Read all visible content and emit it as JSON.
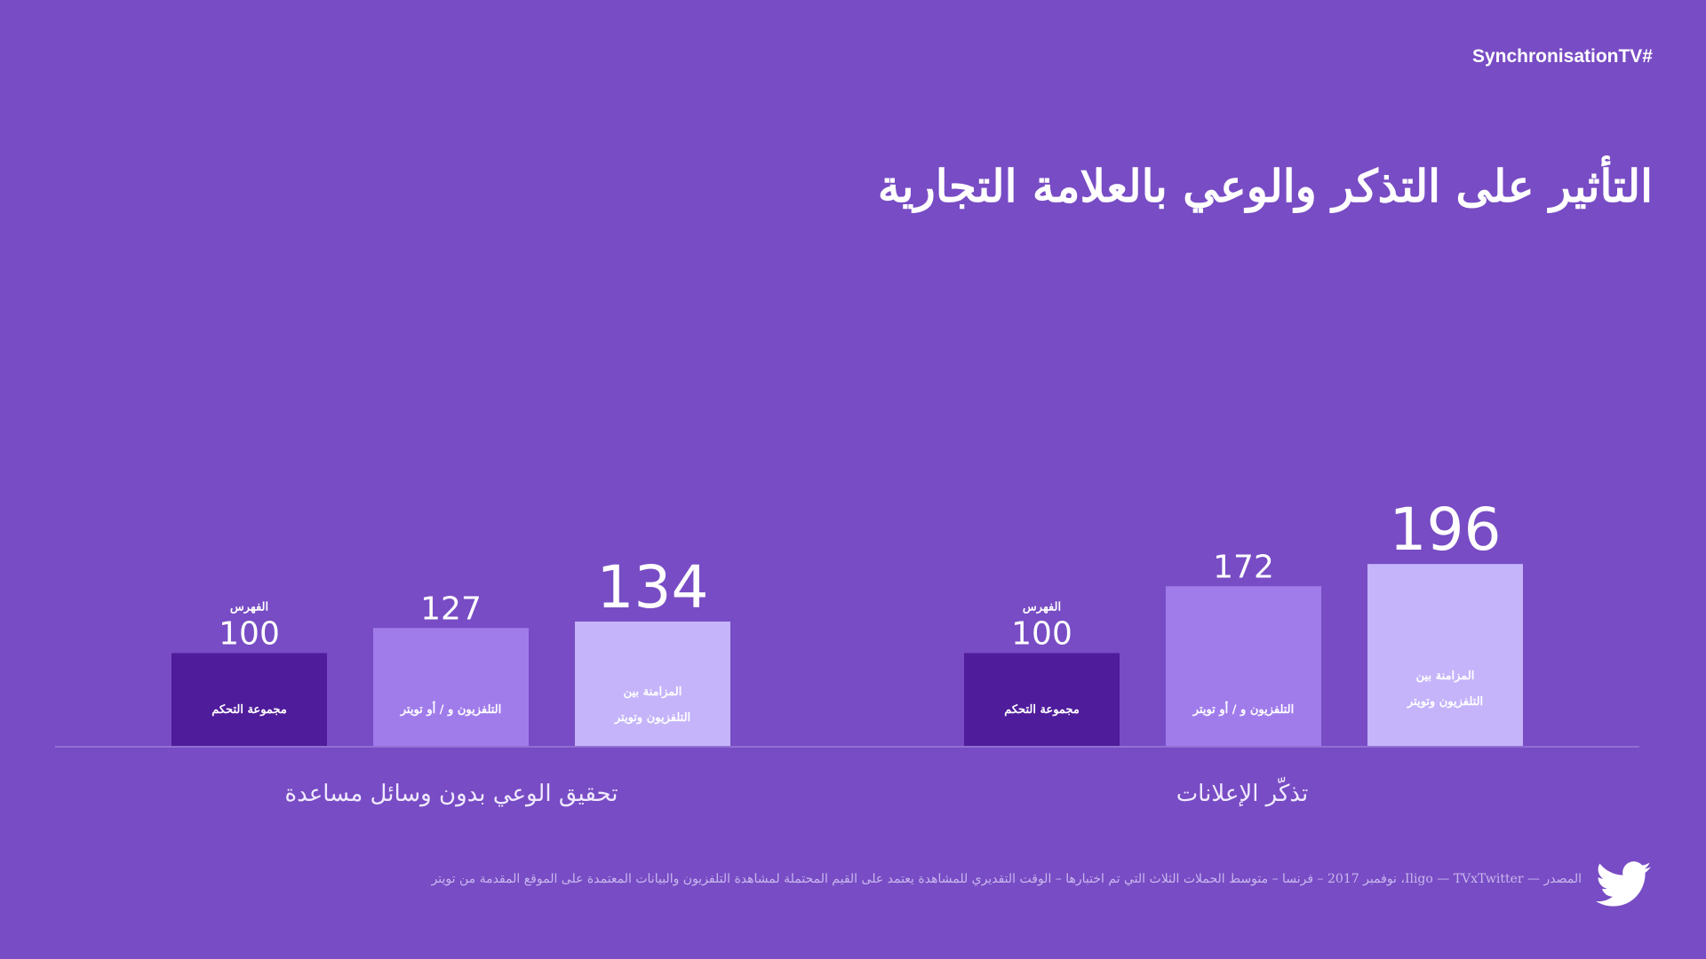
{
  "hashtag": "SynchronisationTV#",
  "title": "التأثير على التذكر والوعي بالعلامة التجارية",
  "source": "المصدر — Iligo — TVxTwitter، نوفمبر 2017 – فرنسا – متوسط الحملات الثلاث التي تم اختبارها – الوقت التقديري للمشاهدة يعتمد على القيم المحتملة لمشاهدة التلفزيون والبيانات المعتمدة على الموقع المقدمة من تويتر",
  "colors": {
    "background": "#784cc4",
    "control": "#4f1c9b",
    "tv_or_twitter": "#a07ceb",
    "synced": "#c5b4fa"
  },
  "icons": [
    "twitter-bird-icon"
  ],
  "chart_data": {
    "type": "bar",
    "index_label": "الفهرس",
    "ylim": [
      0,
      220
    ],
    "groups": [
      {
        "label": "تحقيق الوعي بدون وسائل مساعدة",
        "bars": [
          {
            "label": [
              "مجموعة التحكم"
            ],
            "value": 100,
            "color": "#4f1c9b",
            "index_tag": true
          },
          {
            "label": [
              "التلفزيون و / أو تويتر"
            ],
            "value": 127,
            "color": "#a07ceb",
            "index_tag": false
          },
          {
            "label": [
              "المزامنة بين",
              "التلفزيون وتويتر"
            ],
            "value": 134,
            "color": "#c5b4fa",
            "index_tag": false
          }
        ]
      },
      {
        "label": "تذكّر الإعلانات",
        "bars": [
          {
            "label": [
              "مجموعة التحكم"
            ],
            "value": 100,
            "color": "#4f1c9b",
            "index_tag": true
          },
          {
            "label": [
              "التلفزيون و / أو تويتر"
            ],
            "value": 172,
            "color": "#a07ceb",
            "index_tag": false
          },
          {
            "label": [
              "المزامنة بين",
              "التلفزيون وتويتر"
            ],
            "value": 196,
            "color": "#c5b4fa",
            "index_tag": false
          }
        ]
      }
    ]
  }
}
